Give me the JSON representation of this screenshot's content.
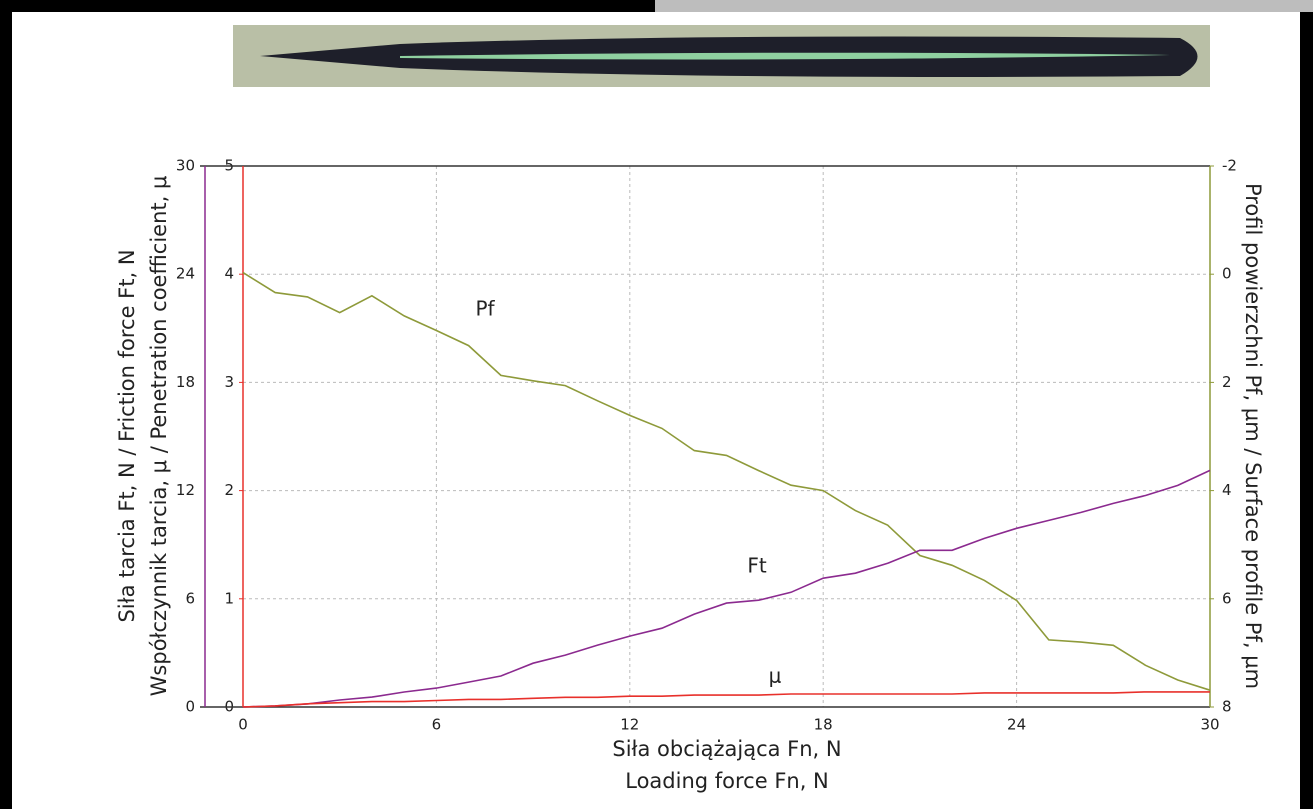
{
  "chart_data": {
    "type": "line",
    "x_label": "Siła obciążająca Fn, N",
    "x_label_2": "Loading force Fn, N",
    "y_label": "Siła tarcia Ft, N / Friction force Ft, N",
    "y3_label": "Współczynnik tarcia, μ / Penetration coefficient, μ",
    "y2_label": "Profil powierzchni Pf, µm / Surface profile Pf, µm",
    "x": [
      0,
      1,
      2,
      3,
      4,
      5,
      6,
      7,
      8,
      9,
      10,
      11,
      12,
      13,
      14,
      15,
      16,
      17,
      18,
      19,
      20,
      21,
      22,
      23,
      24,
      25,
      26,
      27,
      28,
      29,
      30
    ],
    "xlim": [
      0,
      30
    ],
    "xticks": [
      0,
      6,
      12,
      18,
      24,
      30
    ],
    "ylim": [
      0,
      30
    ],
    "yticks": [
      0,
      6,
      12,
      18,
      24,
      30
    ],
    "y3lim": [
      0,
      5
    ],
    "y3ticks": [
      0,
      1,
      2,
      3,
      4,
      5
    ],
    "y2lim": [
      8,
      -2
    ],
    "y2ticks": [
      -2,
      0,
      2,
      4,
      6,
      8
    ],
    "grid": true,
    "series": [
      {
        "name": "Pf",
        "color": "#8e9a3a",
        "axis": "y2",
        "values": [
          -0.03,
          0.34,
          0.42,
          0.71,
          0.4,
          0.77,
          1.04,
          1.32,
          1.87,
          1.97,
          2.06,
          2.34,
          2.61,
          2.85,
          3.26,
          3.35,
          3.63,
          3.9,
          4.0,
          4.37,
          4.64,
          5.2,
          5.38,
          5.66,
          6.03,
          6.76,
          6.8,
          6.86,
          7.23,
          7.5,
          7.69
        ]
      },
      {
        "name": "Ft",
        "color": "#8b2a8f",
        "axis": "y",
        "values": [
          0,
          0.06,
          0.17,
          0.39,
          0.55,
          0.83,
          1.05,
          1.38,
          1.72,
          2.43,
          2.88,
          3.43,
          3.93,
          4.37,
          5.15,
          5.76,
          5.92,
          6.36,
          7.14,
          7.42,
          7.97,
          8.69,
          8.69,
          9.35,
          9.91,
          10.35,
          10.79,
          11.29,
          11.73,
          12.29,
          13.12
        ]
      },
      {
        "name": "μ",
        "color": "#e8302b",
        "axis": "y3",
        "values": [
          0,
          0.01,
          0.03,
          0.04,
          0.05,
          0.05,
          0.06,
          0.07,
          0.07,
          0.08,
          0.09,
          0.09,
          0.1,
          0.1,
          0.11,
          0.11,
          0.11,
          0.12,
          0.12,
          0.12,
          0.12,
          0.12,
          0.12,
          0.13,
          0.13,
          0.13,
          0.13,
          0.13,
          0.14,
          0.14,
          0.14
        ]
      }
    ]
  }
}
